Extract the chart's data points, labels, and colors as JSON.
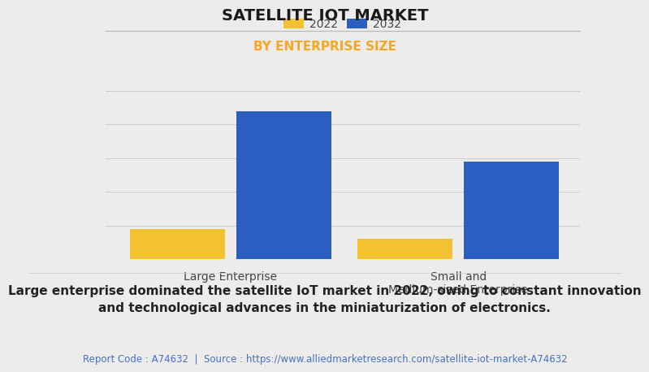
{
  "title": "SATELLITE IOT MARKET",
  "subtitle": "BY ENTERPRISE SIZE",
  "categories": [
    "Large Enterprise",
    "Small and\nMedium-sized Enterprise"
  ],
  "series": [
    {
      "label": "2022",
      "color": "#F2C230",
      "values": [
        0.18,
        0.12
      ]
    },
    {
      "label": "2032",
      "color": "#2B5EBF",
      "values": [
        0.88,
        0.58
      ]
    }
  ],
  "background_color": "#EDECEA",
  "plot_bg_color": "#EDECEA",
  "title_fontsize": 14,
  "subtitle_fontsize": 11,
  "subtitle_color": "#F5A623",
  "legend_fontsize": 10,
  "tick_fontsize": 10,
  "bar_width": 0.25,
  "ylim": [
    0,
    1.05
  ],
  "grid_color": "#CCCCCC",
  "footer_text": "Large enterprise dominated the satellite IoT market in 2022, owing to constant innovation\nand technological advances in the miniaturization of electronics.",
  "footer_color": "#222222",
  "footer_fontsize": 11,
  "source_text": "Report Code : A74632  |  Source : https://www.alliedmarketresearch.com/satellite-iot-market-A74632",
  "source_color": "#4472C4",
  "source_fontsize": 8.5
}
